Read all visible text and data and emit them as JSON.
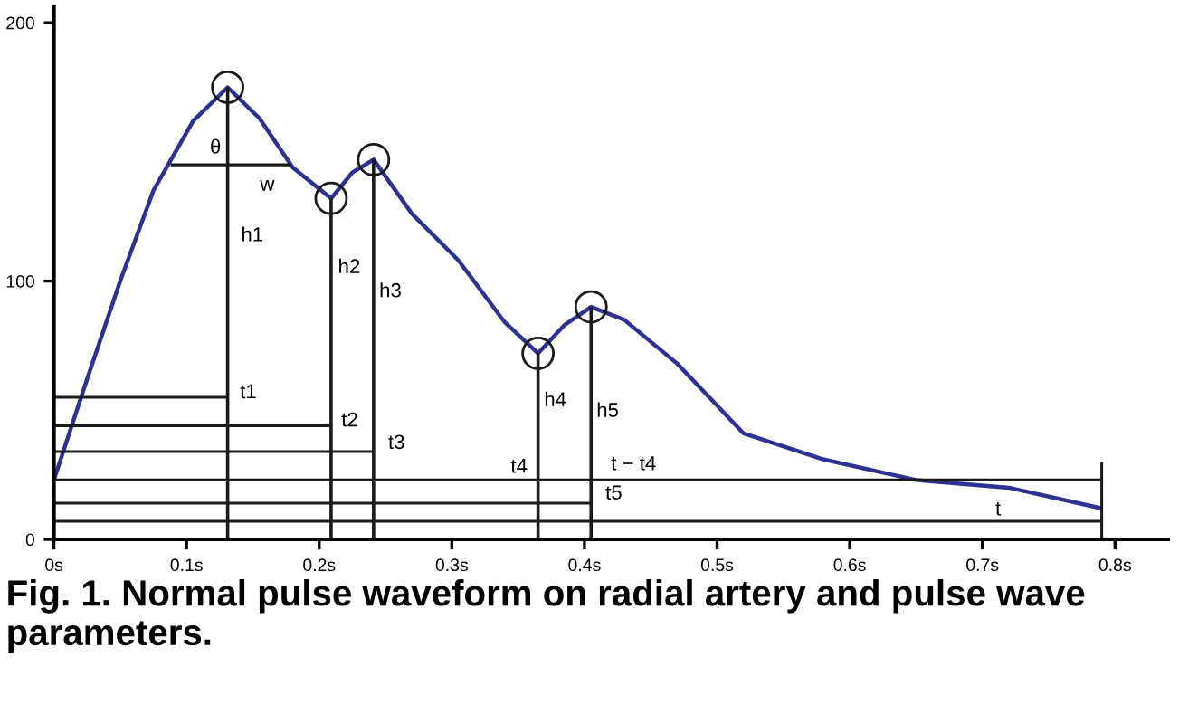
{
  "chart_data": {
    "type": "line",
    "title": "Fig. 1. Normal pulse waveform on radial artery and pulse wave parameters.",
    "xlim": [
      0,
      0.84
    ],
    "ylim": [
      0,
      206
    ],
    "xticks": [
      {
        "value": 0,
        "label": "0s"
      },
      {
        "value": 0.1,
        "label": "0.1s"
      },
      {
        "value": 0.2,
        "label": "0.2s"
      },
      {
        "value": 0.3,
        "label": "0.3s"
      },
      {
        "value": 0.4,
        "label": "0.4s"
      },
      {
        "value": 0.5,
        "label": "0.5s"
      },
      {
        "value": 0.6,
        "label": "0.6s"
      },
      {
        "value": 0.7,
        "label": "0.7s"
      },
      {
        "value": 0.8,
        "label": "0.8s"
      }
    ],
    "yticks": [
      0,
      100,
      200
    ],
    "grid": false,
    "legend": false,
    "series": [
      {
        "color": "#2e3192",
        "marker": "none",
        "line_style": "solid",
        "x": [
          0,
          0.025,
          0.05,
          0.075,
          0.105,
          0.131,
          0.155,
          0.18,
          0.209,
          0.225,
          0.241,
          0.27,
          0.305,
          0.34,
          0.365,
          0.385,
          0.405,
          0.43,
          0.47,
          0.52,
          0.58,
          0.65,
          0.72,
          0.79
        ],
        "values": [
          23,
          62,
          100,
          135,
          162,
          175,
          163,
          144,
          132,
          142,
          147,
          126,
          108,
          84,
          72,
          83,
          90,
          85,
          68,
          41,
          31,
          23,
          20,
          12
        ]
      },
      {
        "type": "lollipop",
        "color": "#1a1a1a",
        "marker": "circle",
        "x": [
          0.131,
          0.209,
          0.241,
          0.365,
          0.405
        ],
        "values": [
          175,
          132,
          147,
          72,
          90
        ]
      },
      {
        "type": "line",
        "color": "#1a1a1a",
        "marker": "none",
        "line_style": "solid",
        "x": [
          0,
          0.131,
          null,
          0,
          0.209,
          null,
          0,
          0.241,
          null,
          0,
          0.365,
          null,
          0.365,
          0.79,
          null,
          0,
          0.405,
          null,
          0,
          0.79,
          null,
          0.088,
          0.179,
          null,
          0.79,
          0.79
        ],
        "values": [
          55,
          55,
          null,
          44,
          44,
          null,
          34,
          34,
          null,
          23,
          23,
          null,
          23,
          23,
          null,
          14,
          14,
          null,
          7,
          7,
          null,
          145,
          145,
          null,
          0,
          30
        ]
      }
    ],
    "annotations": [
      "h1",
      "h2",
      "h3",
      "h4",
      "h5",
      "w",
      "θ",
      "t1",
      "t2",
      "t3",
      "t4",
      "t − t4",
      "t5",
      "t"
    ]
  }
}
